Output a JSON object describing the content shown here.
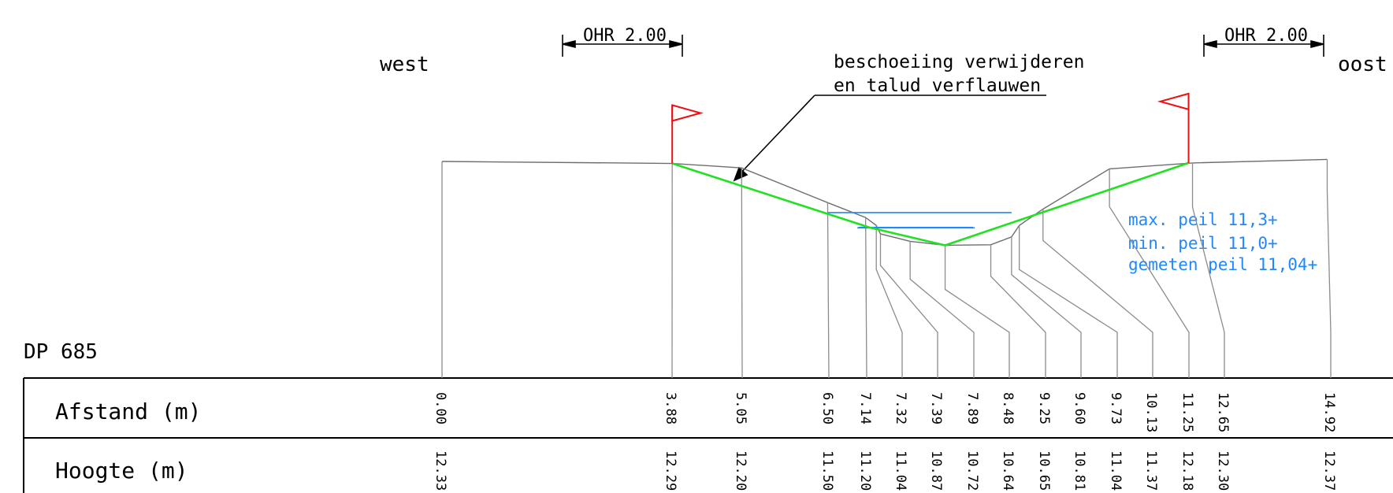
{
  "profile": {
    "id": "DP 685",
    "west": "west",
    "east": "oost",
    "ohr_left": "OHR 2.00",
    "ohr_right": "OHR 2.00",
    "callout": [
      "beschoeiing verwijderen",
      "en talud verflauwen"
    ],
    "levels": [
      "max. peil 11,3+",
      "min. peil 11,0+",
      "gemeten peil 11,04+"
    ]
  },
  "table": {
    "row1_label": "Afstand (m)",
    "row2_label": "Hoogte (m)",
    "afstand": [
      "0.00",
      "3.88",
      "5.05",
      "6.50",
      "7.14",
      "7.32",
      "7.39",
      "7.89",
      "8.48",
      "9.25",
      "9.60",
      "9.73",
      "10.13",
      "11.25",
      "12.65",
      "14.92"
    ],
    "hoogte": [
      "12.33",
      "12.29",
      "12.20",
      "11.50",
      "11.20",
      "11.04",
      "10.87",
      "10.72",
      "10.64",
      "10.65",
      "10.81",
      "11.04",
      "11.37",
      "12.18",
      "12.30",
      "12.37"
    ]
  },
  "colors": {
    "terrain": "#8c8c8c",
    "design": "#22e022",
    "water": "#1e88ff",
    "flag": "#ee1111"
  }
}
